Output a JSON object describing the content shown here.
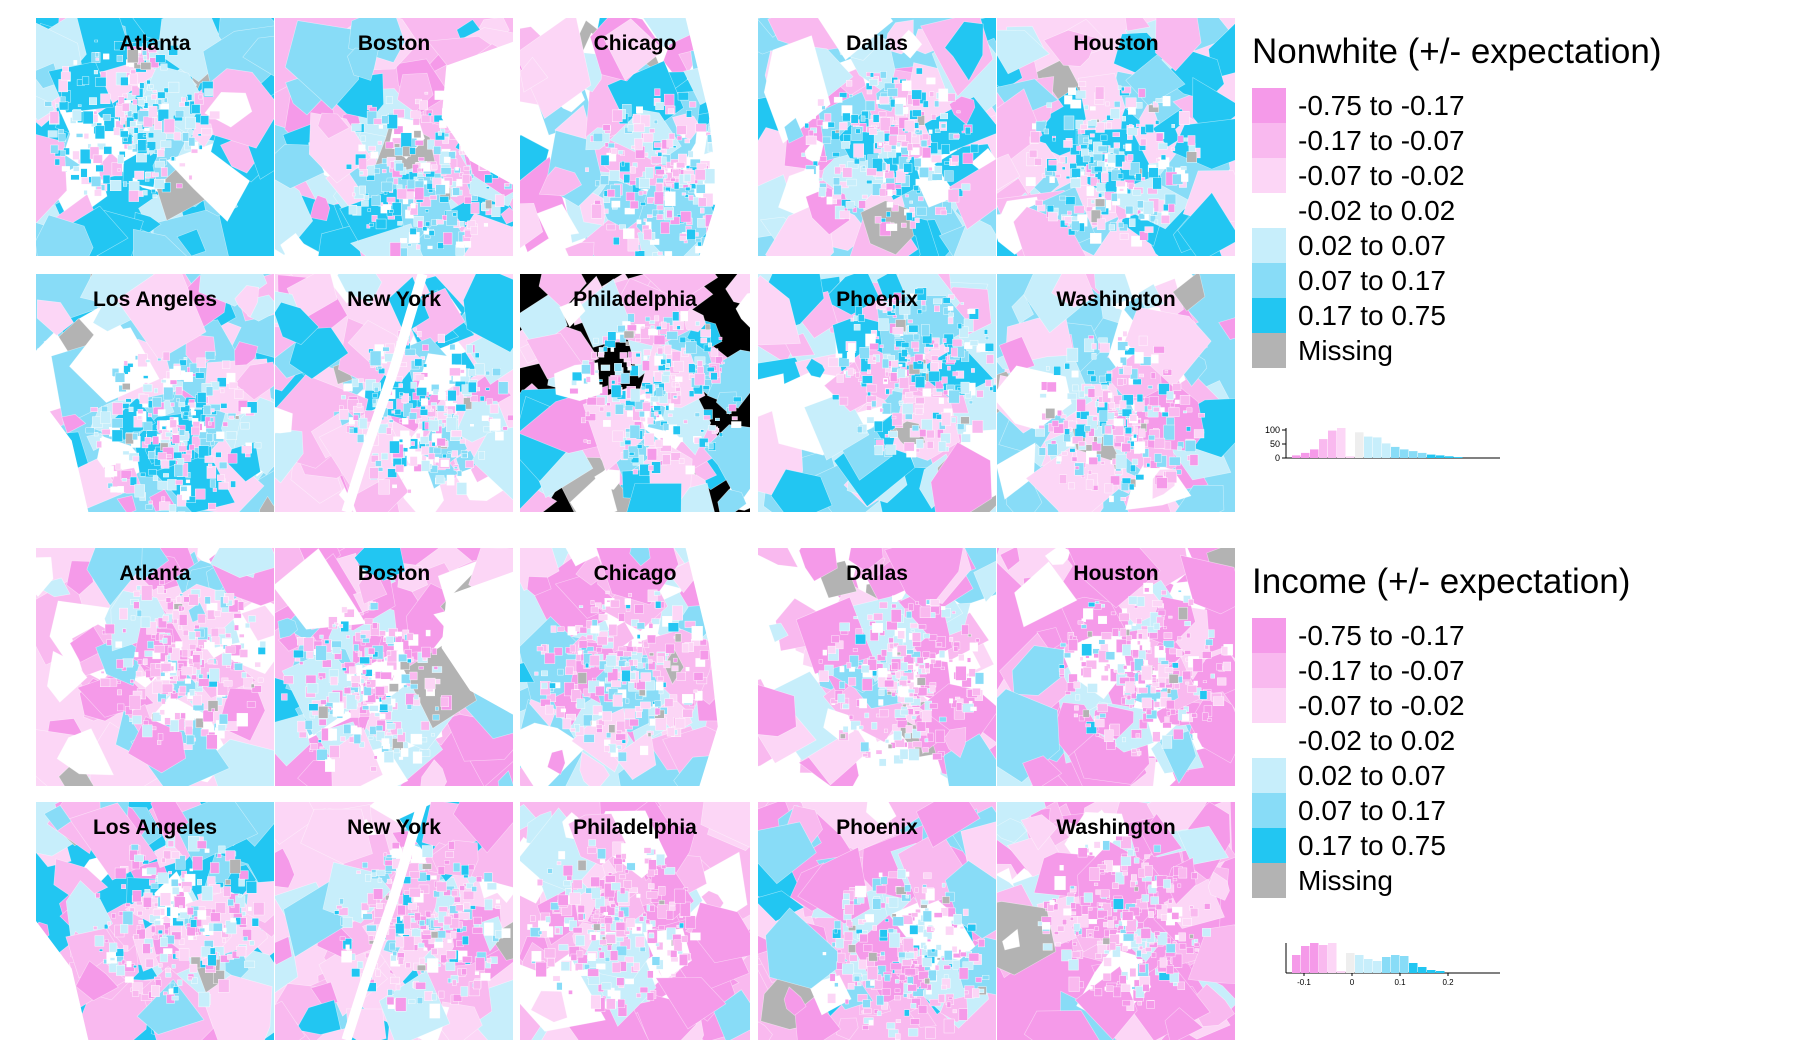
{
  "colors": {
    "bins": [
      "#f59ae9",
      "#f9b9ef",
      "#fcd6f6",
      "#ffffff",
      "#c7eefb",
      "#88dcf7",
      "#22c6f2"
    ],
    "missing": "#b3b3b3"
  },
  "legend_labels": [
    "-0.75 to -0.17",
    "-0.17 to -0.07",
    "-0.07 to -0.02",
    "-0.02 to 0.02",
    "0.02 to 0.07",
    "0.07 to 0.17",
    "0.17 to 0.75",
    "Missing"
  ],
  "cities": [
    "Atlanta",
    "Boston",
    "Chicago",
    "Dallas",
    "Houston",
    "Los Angeles",
    "New York",
    "Philadelphia",
    "Phoenix",
    "Washington"
  ],
  "sections": [
    {
      "title": "Nonwhite (+/- expectation)",
      "histogram": {
        "y_tick_labels": [
          "100",
          "50",
          "0"
        ],
        "x_tick_labels": [],
        "bars": [
          3,
          6,
          10,
          22,
          32,
          35,
          2,
          30,
          25,
          24,
          17,
          13,
          10,
          8,
          6,
          4,
          3,
          2,
          1
        ]
      }
    },
    {
      "title": "Income (+/- expectation)",
      "histogram": {
        "y_tick_labels": [],
        "x_tick_labels": [
          "-0.1",
          "0",
          "0.1",
          "0.2"
        ],
        "bars": [
          18,
          27,
          30,
          28,
          30,
          2,
          20,
          18,
          14,
          12,
          16,
          18,
          17,
          10,
          6,
          3,
          2
        ]
      }
    }
  ]
}
